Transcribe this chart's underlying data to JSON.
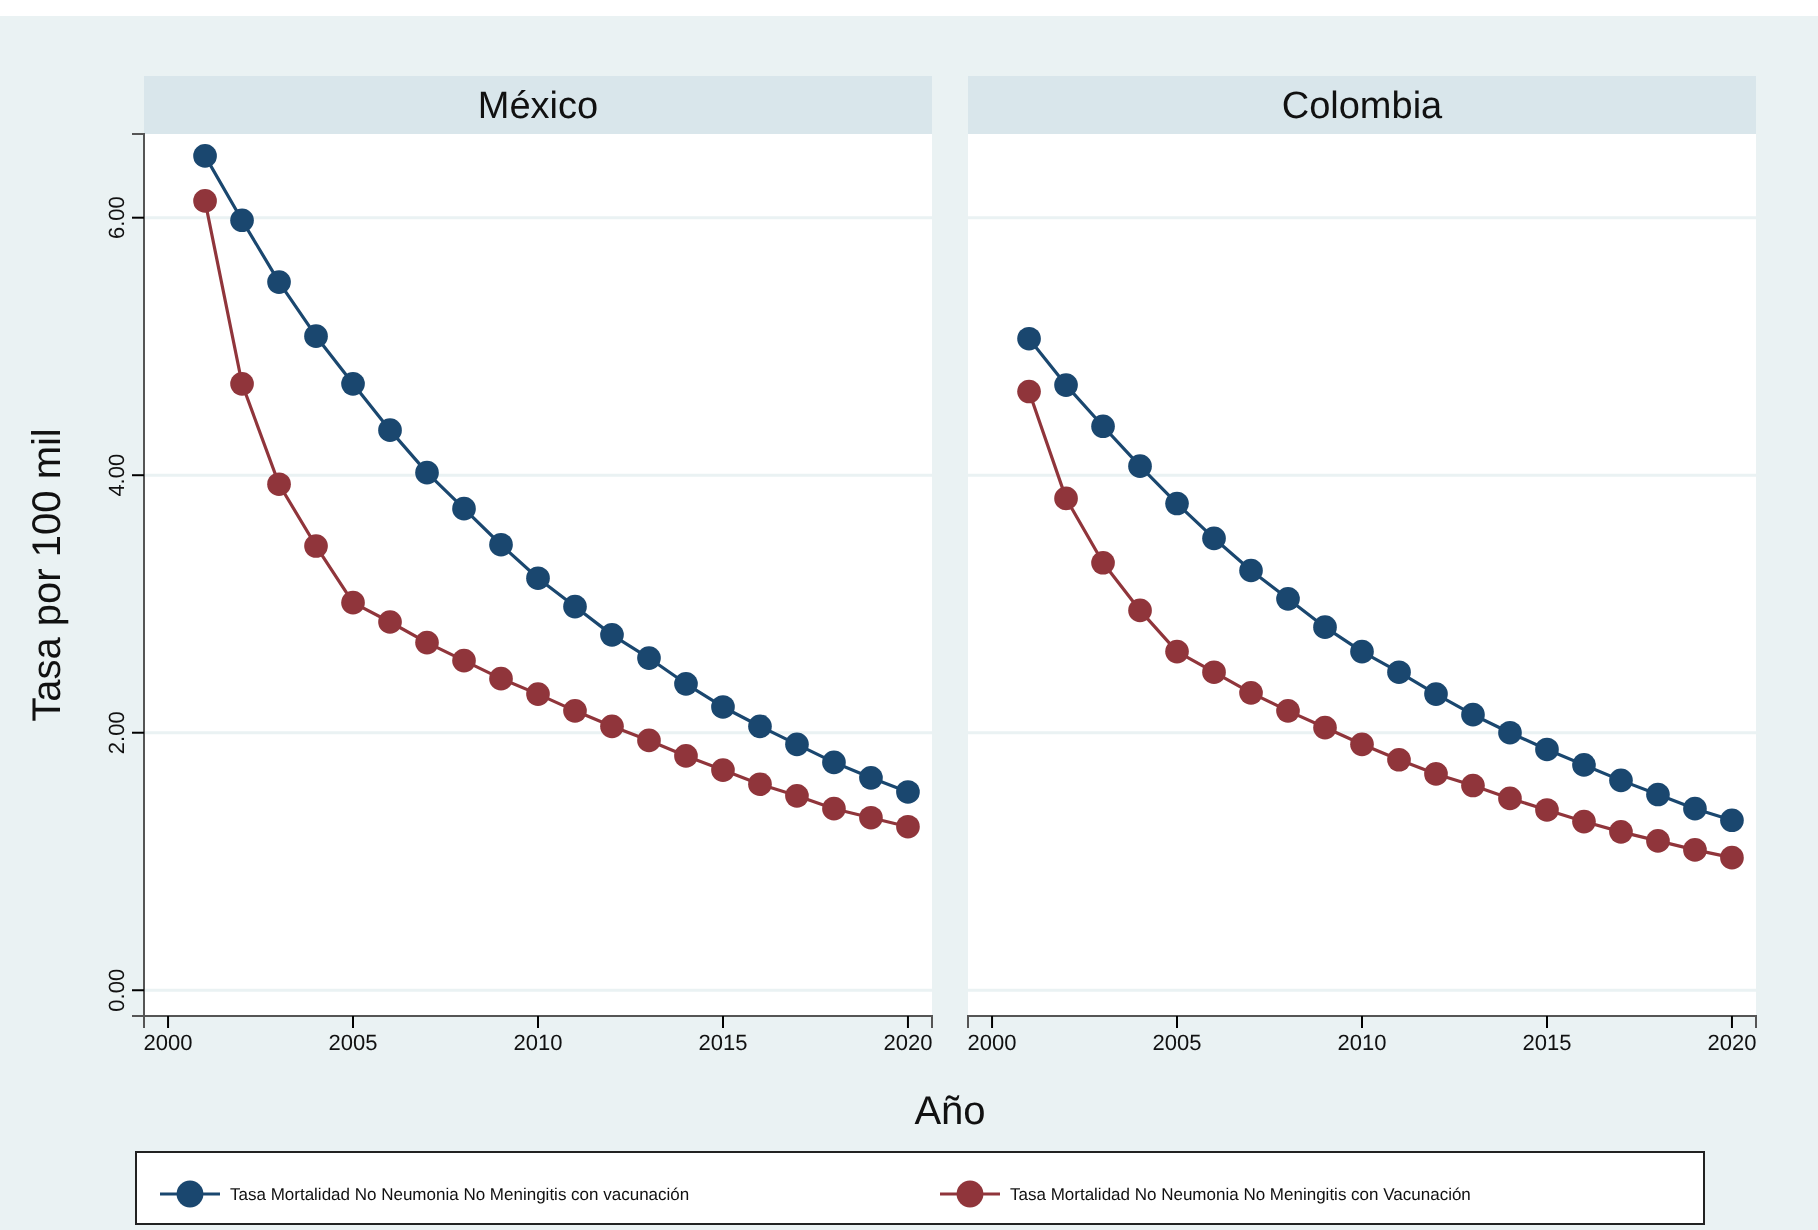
{
  "chart_data": [
    {
      "type": "line",
      "title": "México",
      "ylabel": "Tasa por 100 mil",
      "xlabel": "Año",
      "x": [
        2001,
        2002,
        2003,
        2004,
        2005,
        2006,
        2007,
        2008,
        2009,
        2010,
        2011,
        2012,
        2013,
        2014,
        2015,
        2016,
        2017,
        2018,
        2019,
        2020
      ],
      "series": [
        {
          "name": "Tasa Mortalidad No Neumonia No Meningitis con vacunación",
          "color": "#1a476f",
          "values": [
            6.48,
            5.98,
            5.5,
            5.08,
            4.71,
            4.35,
            4.02,
            3.74,
            3.46,
            3.2,
            2.98,
            2.76,
            2.58,
            2.38,
            2.2,
            2.05,
            1.91,
            1.77,
            1.65,
            1.54
          ]
        },
        {
          "name": "Tasa Mortalidad No Neumonia No Meningitis con Vacunación",
          "color": "#90353b",
          "values": [
            6.13,
            4.71,
            3.93,
            3.45,
            3.01,
            2.86,
            2.7,
            2.56,
            2.42,
            2.3,
            2.17,
            2.05,
            1.94,
            1.82,
            1.71,
            1.6,
            1.51,
            1.41,
            1.34,
            1.27
          ]
        }
      ],
      "xlim": [
        1999.35,
        2020.65
      ],
      "xticks": [
        2000,
        2005,
        2010,
        2015,
        2020
      ],
      "ylim": [
        -0.2,
        6.65
      ],
      "yticks": [
        {
          "value": 0,
          "label": "0.00"
        },
        {
          "value": 2,
          "label": "2.00"
        },
        {
          "value": 4,
          "label": "4.00"
        },
        {
          "value": 6,
          "label": "6.00"
        }
      ],
      "grid": "y",
      "marker": "circle",
      "legend": "bottom"
    },
    {
      "type": "line",
      "title": "Colombia",
      "x": [
        2001,
        2002,
        2003,
        2004,
        2005,
        2006,
        2007,
        2008,
        2009,
        2010,
        2011,
        2012,
        2013,
        2014,
        2015,
        2016,
        2017,
        2018,
        2019,
        2020
      ],
      "series": [
        {
          "color": "#1a476f",
          "values": [
            5.06,
            4.7,
            4.38,
            4.07,
            3.78,
            3.51,
            3.26,
            3.04,
            2.82,
            2.63,
            2.47,
            2.3,
            2.14,
            2.0,
            1.87,
            1.75,
            1.63,
            1.52,
            1.41,
            1.32
          ]
        },
        {
          "color": "#90353b",
          "values": [
            4.65,
            3.82,
            3.32,
            2.95,
            2.63,
            2.47,
            2.31,
            2.17,
            2.04,
            1.91,
            1.79,
            1.68,
            1.59,
            1.49,
            1.4,
            1.31,
            1.23,
            1.16,
            1.09,
            1.03
          ]
        }
      ],
      "xlim": [
        1999.35,
        2020.65
      ],
      "xticks": [
        2000,
        2005,
        2010,
        2015,
        2020
      ],
      "ylim": [
        -0.2,
        6.65
      ],
      "yticks": [
        0,
        2,
        4,
        6
      ],
      "grid": "y",
      "marker": "circle",
      "tick_labels": "x"
    }
  ]
}
